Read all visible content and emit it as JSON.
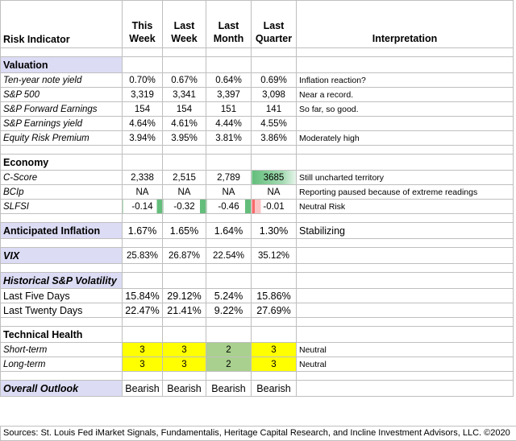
{
  "headers": {
    "indicator": "Risk Indicator",
    "this_week": "This Week",
    "last_week": "Last Week",
    "last_month": "Last Month",
    "last_quarter": "Last Quarter",
    "interpretation": "Interpretation"
  },
  "sections": {
    "valuation": "Valuation",
    "economy": "Economy",
    "anticipated_inflation": "Anticipated Inflation",
    "vix": "VIX",
    "historical": "Historical  S&P Volatility",
    "technical": "Technical Health",
    "outlook": "Overall Outlook"
  },
  "valuation_rows": [
    {
      "name": "Ten-year note yield",
      "this": "0.70%",
      "week": "0.67%",
      "month": "0.64%",
      "quarter": "0.69%",
      "interp": "Inflation reaction?"
    },
    {
      "name": "S&P 500",
      "this": "3,319",
      "week": "3,341",
      "month": "3,397",
      "quarter": "3,098",
      "interp": "Near a record."
    },
    {
      "name": "S&P Forward Earnings",
      "this": "154",
      "week": "154",
      "month": "151",
      "quarter": "141",
      "interp": "So far, so good."
    },
    {
      "name": "S&P Earnings yield",
      "this": "4.64%",
      "week": "4.61%",
      "month": "4.44%",
      "quarter": "4.55%",
      "interp": ""
    },
    {
      "name": "Equity Risk Premium",
      "this": "3.94%",
      "week": "3.95%",
      "month": "3.81%",
      "quarter": "3.86%",
      "interp": "Moderately high"
    }
  ],
  "economy_rows": [
    {
      "name": "C-Score",
      "this": "2,338",
      "week": "2,515",
      "month": "2,789",
      "quarter": "3685",
      "interp": "Still uncharted territory"
    },
    {
      "name": "BCIp",
      "this": "NA",
      "week": "NA",
      "month": "NA",
      "quarter": "NA",
      "interp": "Reporting paused because of extreme readings"
    },
    {
      "name": "SLFSI",
      "this": "-0.14",
      "week": "-0.32",
      "month": "-0.46",
      "quarter": "-0.01",
      "interp": "Neutral Risk"
    }
  ],
  "inflation": {
    "this": "1.67%",
    "week": "1.65%",
    "month": "1.64%",
    "quarter": "1.30%",
    "interp": "Stabilizing"
  },
  "vix": {
    "this": "25.83%",
    "week": "26.87%",
    "month": "22.54%",
    "quarter": "35.12%",
    "interp": ""
  },
  "volatility_rows": [
    {
      "name": "Last Five Days",
      "this": "15.84%",
      "week": "29.12%",
      "month": "5.24%",
      "quarter": "15.86%"
    },
    {
      "name": "Last Twenty Days",
      "this": "22.47%",
      "week": "21.41%",
      "month": "9.22%",
      "quarter": "27.69%"
    }
  ],
  "technical_rows": [
    {
      "name": "Short-term",
      "this": "3",
      "week": "3",
      "month": "2",
      "quarter": "3",
      "interp": "Neutral"
    },
    {
      "name": "Long-term",
      "this": "3",
      "week": "3",
      "month": "2",
      "quarter": "3",
      "interp": "Neutral"
    }
  ],
  "outlook": {
    "this": "Bearish",
    "week": "Bearish",
    "month": "Bearish",
    "quarter": "Bearish"
  },
  "footer": "Sources: St. Louis Fed  iMarket Signals, Fundamentalis, Heritage Capital Research, and Incline Investment Advisors, LLC. ©2020",
  "colors": {
    "section_fill": "#dcdcf5",
    "yellow": "#ffff00",
    "green": "#a9d08e",
    "databar_green": "#63be7b",
    "databar_red": "#f8696b"
  }
}
